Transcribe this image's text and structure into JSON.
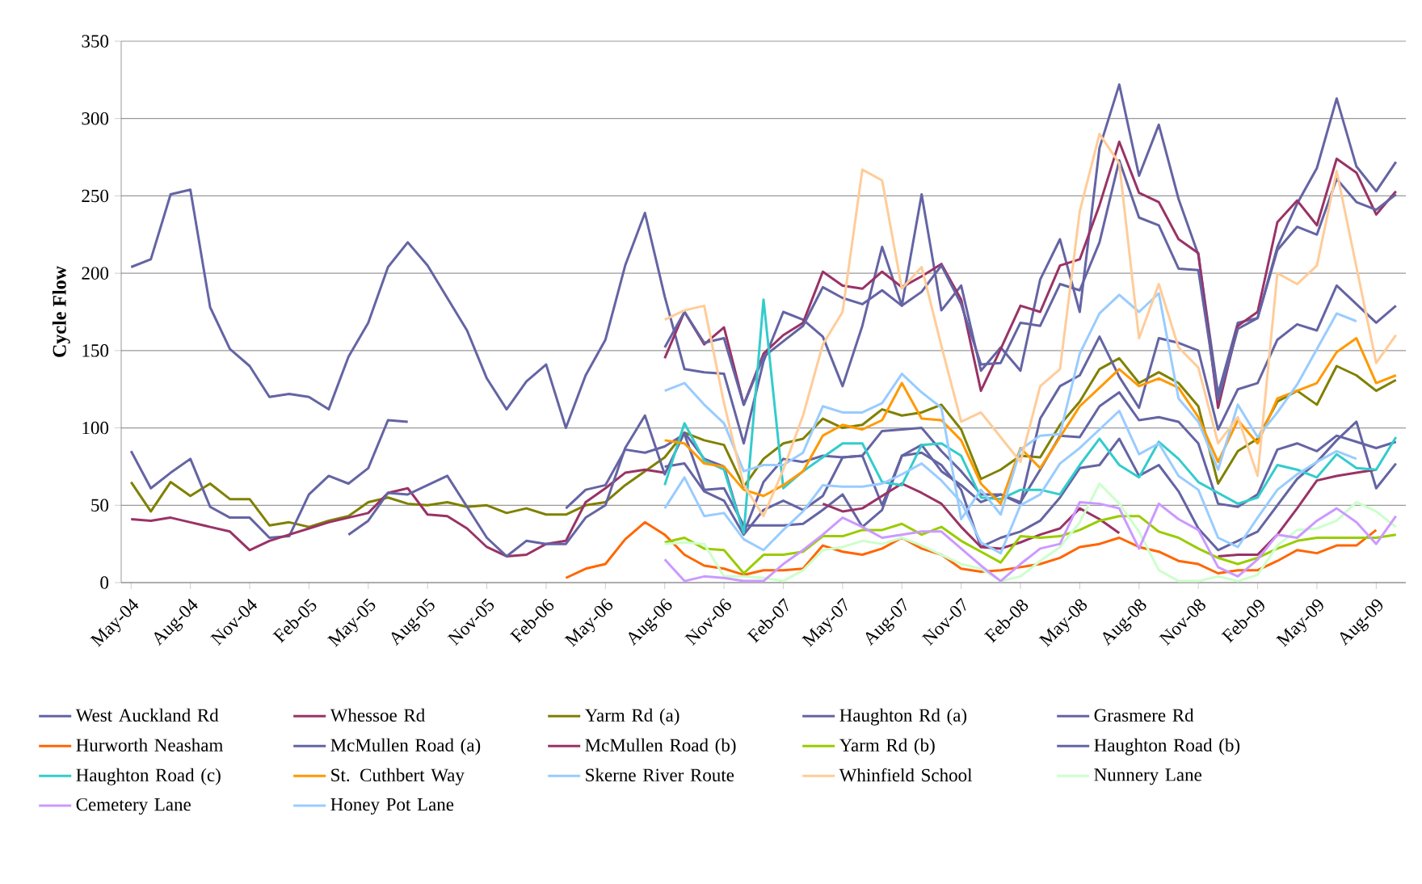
{
  "chart_data": {
    "type": "line",
    "ylabel": "Cycle Flow",
    "categories": [
      "May-04",
      null,
      null,
      "Aug-04",
      null,
      null,
      "Nov-04",
      null,
      null,
      "Feb-05",
      null,
      null,
      "May-05",
      null,
      null,
      "Aug-05",
      null,
      null,
      "Nov-05",
      null,
      null,
      "Feb-06",
      null,
      null,
      "May-06",
      null,
      null,
      "Aug-06",
      null,
      null,
      "Nov-06",
      null,
      null,
      "Feb-07",
      null,
      null,
      "May-07",
      null,
      null,
      "Aug-07",
      null,
      null,
      "Nov-07",
      null,
      null,
      "Feb-08",
      null,
      null,
      "May-08",
      null,
      null,
      "Aug-08",
      null,
      null,
      "Nov-08",
      null,
      null,
      "Feb-09",
      null,
      null,
      "May-09",
      null,
      null,
      "Aug-09",
      null
    ],
    "ylim": [
      0,
      350
    ],
    "yticks": [
      0,
      50,
      100,
      150,
      200,
      250,
      300,
      350
    ],
    "grid": "y",
    "legend": "bottom",
    "series": [
      {
        "name": "West Auckland Rd",
        "color": "#6464a4",
        "values": [
          204,
          209,
          251,
          254,
          178,
          151,
          140,
          120,
          122,
          120,
          112,
          146,
          168,
          204,
          220,
          205,
          184,
          163,
          132,
          112,
          130,
          141,
          100,
          134,
          157,
          205,
          239,
          185,
          138,
          136,
          135,
          90,
          143,
          175,
          170,
          159,
          127,
          166,
          217,
          179,
          251,
          176,
          192,
          137,
          152,
          137,
          196,
          222,
          175,
          281,
          322,
          263,
          296,
          248,
          212,
          122,
          168,
          171,
          217,
          245,
          268,
          313,
          269,
          253,
          272
        ]
      },
      {
        "name": "Whessoe Rd",
        "color": "#993366",
        "values": [
          null,
          null,
          null,
          null,
          null,
          null,
          null,
          null,
          null,
          null,
          null,
          null,
          null,
          null,
          null,
          null,
          null,
          null,
          null,
          null,
          null,
          null,
          null,
          null,
          null,
          null,
          null,
          145,
          175,
          154,
          165,
          115,
          148,
          160,
          168,
          201,
          192,
          190,
          201,
          191,
          198,
          206,
          183,
          124,
          151,
          179,
          175,
          205,
          209,
          244,
          285,
          252,
          246,
          222,
          213,
          113,
          166,
          175,
          233,
          247,
          231,
          274,
          265,
          238,
          253
        ]
      },
      {
        "name": "Yarm Rd (a)",
        "color": "#808000",
        "values": [
          65,
          46,
          65,
          56,
          64,
          54,
          54,
          37,
          39,
          36,
          40,
          43,
          52,
          55,
          51,
          50,
          52,
          49,
          50,
          45,
          48,
          44,
          44,
          50,
          52,
          63,
          72,
          81,
          97,
          92,
          89,
          62,
          80,
          90,
          93,
          106,
          100,
          102,
          112,
          108,
          110,
          115,
          99,
          67,
          73,
          82,
          81,
          102,
          117,
          138,
          145,
          129,
          136,
          129,
          114,
          64,
          85,
          93,
          117,
          124,
          115,
          140,
          134,
          124,
          131
        ]
      },
      {
        "name": "Haughton Rd (a)",
        "color": "#6464a4",
        "values": [
          null,
          null,
          null,
          null,
          null,
          null,
          null,
          null,
          null,
          null,
          null,
          null,
          null,
          null,
          null,
          null,
          null,
          null,
          null,
          null,
          null,
          null,
          null,
          null,
          null,
          null,
          null,
          152,
          175,
          155,
          158,
          115,
          146,
          156,
          166,
          191,
          184,
          180,
          189,
          179,
          188,
          205,
          180,
          141,
          142,
          168,
          166,
          193,
          189,
          220,
          273,
          236,
          231,
          203,
          202,
          118,
          164,
          171,
          215,
          230,
          225,
          261,
          246,
          241,
          251
        ]
      },
      {
        "name": "Grasmere Rd",
        "color": "#6464a4",
        "values": [
          null,
          null,
          null,
          null,
          null,
          null,
          null,
          null,
          null,
          null,
          null,
          null,
          null,
          null,
          null,
          null,
          null,
          null,
          null,
          null,
          null,
          null,
          null,
          null,
          null,
          null,
          null,
          75,
          77,
          59,
          53,
          31,
          47,
          53,
          47,
          56,
          81,
          82,
          50,
          82,
          89,
          72,
          63,
          52,
          57,
          51,
          106,
          127,
          134,
          159,
          133,
          113,
          158,
          155,
          150,
          99,
          125,
          129,
          157,
          167,
          163,
          192,
          180,
          168,
          179
        ]
      },
      {
        "name": "Hurworth Neasham",
        "color": "#ff6600",
        "values": [
          null,
          null,
          null,
          null,
          null,
          null,
          null,
          null,
          null,
          null,
          null,
          null,
          null,
          null,
          null,
          null,
          null,
          null,
          null,
          null,
          null,
          null,
          3,
          9,
          12,
          28,
          39,
          31,
          18,
          11,
          9,
          5,
          8,
          8,
          9,
          24,
          20,
          18,
          22,
          29,
          22,
          18,
          9,
          7,
          8,
          10,
          12,
          16,
          23,
          25,
          29,
          23,
          20,
          14,
          12,
          6,
          8,
          8,
          14,
          21,
          19,
          24,
          24,
          34,
          null
        ]
      },
      {
        "name": "McMullen Road (a)",
        "color": "#6464a4",
        "values": [
          85,
          61,
          71,
          80,
          49,
          42,
          42,
          29,
          30,
          57,
          69,
          64,
          74,
          105,
          104,
          null,
          null,
          null,
          null,
          null,
          null,
          null,
          48,
          60,
          63,
          86,
          84,
          88,
          96,
          60,
          61,
          37,
          37,
          37,
          38,
          47,
          57,
          36,
          47,
          82,
          84,
          76,
          60,
          23,
          29,
          33,
          40,
          55,
          74,
          76,
          93,
          69,
          76,
          59,
          35,
          21,
          27,
          33,
          50,
          67,
          78,
          92,
          104,
          61,
          77
        ]
      },
      {
        "name": "McMullen Road (b)",
        "color": "#993366",
        "values": [
          41,
          40,
          42,
          39,
          36,
          33,
          21,
          27,
          31,
          35,
          39,
          42,
          45,
          58,
          61,
          44,
          43,
          35,
          23,
          17,
          18,
          25,
          27,
          52,
          61,
          71,
          73,
          71,
          null,
          null,
          null,
          null,
          null,
          null,
          null,
          51,
          46,
          48,
          56,
          64,
          58,
          51,
          36,
          23,
          22,
          26,
          31,
          35,
          48,
          41,
          32,
          null,
          null,
          null,
          null,
          17,
          18,
          18,
          31,
          48,
          66,
          69,
          71,
          73,
          null
        ]
      },
      {
        "name": "Yarm Rd (b)",
        "color": "#99cc00",
        "values": [
          null,
          null,
          null,
          null,
          null,
          null,
          null,
          null,
          null,
          null,
          null,
          null,
          null,
          null,
          null,
          null,
          null,
          null,
          null,
          null,
          null,
          null,
          null,
          null,
          null,
          null,
          null,
          26,
          29,
          22,
          21,
          6,
          18,
          18,
          20,
          30,
          30,
          34,
          34,
          38,
          31,
          36,
          27,
          20,
          13,
          30,
          29,
          30,
          34,
          40,
          43,
          43,
          33,
          29,
          22,
          16,
          12,
          16,
          22,
          27,
          29,
          29,
          29,
          29,
          31
        ]
      },
      {
        "name": "Haughton Road (b)",
        "color": "#6464a4",
        "values": [
          null,
          null,
          null,
          null,
          null,
          null,
          null,
          null,
          null,
          null,
          null,
          31,
          40,
          58,
          57,
          63,
          69,
          49,
          29,
          17,
          27,
          25,
          25,
          42,
          50,
          87,
          108,
          70,
          97,
          80,
          75,
          32,
          65,
          80,
          78,
          82,
          81,
          82,
          98,
          99,
          100,
          85,
          72,
          57,
          57,
          52,
          73,
          95,
          94,
          114,
          123,
          105,
          107,
          104,
          90,
          51,
          49,
          57,
          86,
          90,
          85,
          95,
          91,
          87,
          91
        ]
      },
      {
        "name": "Haughton Road (c)",
        "color": "#33cccc",
        "values": [
          null,
          null,
          null,
          null,
          null,
          null,
          null,
          null,
          null,
          null,
          null,
          null,
          null,
          null,
          null,
          null,
          null,
          null,
          null,
          null,
          null,
          null,
          null,
          null,
          null,
          null,
          null,
          63,
          103,
          79,
          73,
          32,
          183,
          61,
          72,
          81,
          90,
          90,
          65,
          63,
          89,
          90,
          82,
          55,
          54,
          60,
          60,
          57,
          76,
          93,
          76,
          68,
          91,
          80,
          65,
          58,
          51,
          55,
          76,
          73,
          68,
          83,
          74,
          73,
          94
        ]
      },
      {
        "name": "St. Cuthbert Way",
        "color": "#ff9900",
        "values": [
          null,
          null,
          null,
          null,
          null,
          null,
          null,
          null,
          null,
          null,
          null,
          null,
          null,
          null,
          null,
          null,
          null,
          null,
          null,
          null,
          null,
          null,
          null,
          null,
          null,
          null,
          null,
          92,
          90,
          77,
          75,
          60,
          56,
          63,
          72,
          95,
          102,
          99,
          105,
          129,
          106,
          105,
          92,
          64,
          51,
          87,
          74,
          94,
          114,
          126,
          138,
          127,
          132,
          126,
          107,
          78,
          105,
          90,
          119,
          124,
          129,
          149,
          158,
          129,
          134
        ]
      },
      {
        "name": "Skerne River Route",
        "color": "#99ccff",
        "values": [
          null,
          null,
          null,
          null,
          null,
          null,
          null,
          null,
          null,
          null,
          null,
          null,
          null,
          null,
          null,
          null,
          null,
          null,
          null,
          null,
          null,
          null,
          null,
          null,
          null,
          null,
          null,
          124,
          129,
          115,
          103,
          72,
          76,
          76,
          84,
          114,
          110,
          110,
          116,
          135,
          123,
          113,
          41,
          60,
          44,
          86,
          95,
          96,
          148,
          174,
          186,
          175,
          187,
          119,
          104,
          73,
          115,
          94,
          110,
          128,
          151,
          174,
          169,
          null,
          null
        ]
      },
      {
        "name": "Whinfield School",
        "color": "#ffcc99",
        "values": [
          null,
          null,
          null,
          null,
          null,
          null,
          null,
          null,
          null,
          null,
          null,
          null,
          null,
          null,
          null,
          null,
          null,
          null,
          null,
          null,
          null,
          null,
          null,
          null,
          null,
          null,
          null,
          170,
          176,
          179,
          116,
          63,
          43,
          73,
          108,
          154,
          175,
          267,
          260,
          190,
          204,
          153,
          104,
          110,
          94,
          78,
          127,
          138,
          240,
          290,
          271,
          158,
          193,
          152,
          139,
          90,
          107,
          69,
          200,
          193,
          205,
          266,
          204,
          142,
          160
        ]
      },
      {
        "name": "Nunnery Lane",
        "color": "#ccffcc",
        "values": [
          null,
          null,
          null,
          null,
          null,
          null,
          null,
          null,
          null,
          null,
          null,
          null,
          null,
          null,
          null,
          null,
          null,
          null,
          null,
          null,
          null,
          null,
          null,
          null,
          null,
          null,
          null,
          25,
          26,
          25,
          4,
          4,
          3,
          1,
          8,
          21,
          23,
          27,
          25,
          29,
          24,
          18,
          12,
          9,
          1,
          4,
          14,
          23,
          39,
          64,
          51,
          33,
          8,
          1,
          1,
          4,
          1,
          5,
          24,
          34,
          35,
          40,
          52,
          46,
          36
        ]
      },
      {
        "name": "Cemetery Lane",
        "color": "#cc99ff",
        "values": [
          null,
          null,
          null,
          null,
          null,
          null,
          null,
          null,
          null,
          null,
          null,
          null,
          null,
          null,
          null,
          null,
          null,
          null,
          null,
          null,
          null,
          null,
          null,
          null,
          null,
          null,
          null,
          15,
          1,
          4,
          3,
          1,
          1,
          12,
          21,
          31,
          42,
          36,
          29,
          31,
          33,
          33,
          22,
          11,
          1,
          12,
          22,
          25,
          52,
          51,
          48,
          22,
          51,
          41,
          34,
          10,
          4,
          15,
          31,
          29,
          40,
          48,
          39,
          25,
          43
        ]
      },
      {
        "name": "Honey Pot Lane",
        "color": "#99ccff",
        "values": [
          null,
          null,
          null,
          null,
          null,
          null,
          null,
          null,
          null,
          null,
          null,
          null,
          null,
          null,
          null,
          null,
          null,
          null,
          null,
          null,
          null,
          null,
          null,
          null,
          null,
          null,
          null,
          48,
          68,
          43,
          45,
          28,
          21,
          34,
          46,
          63,
          62,
          62,
          64,
          70,
          77,
          66,
          52,
          26,
          19,
          50,
          57,
          77,
          87,
          99,
          111,
          83,
          90,
          69,
          60,
          29,
          23,
          42,
          60,
          70,
          78,
          85,
          80,
          null,
          null
        ]
      }
    ]
  }
}
